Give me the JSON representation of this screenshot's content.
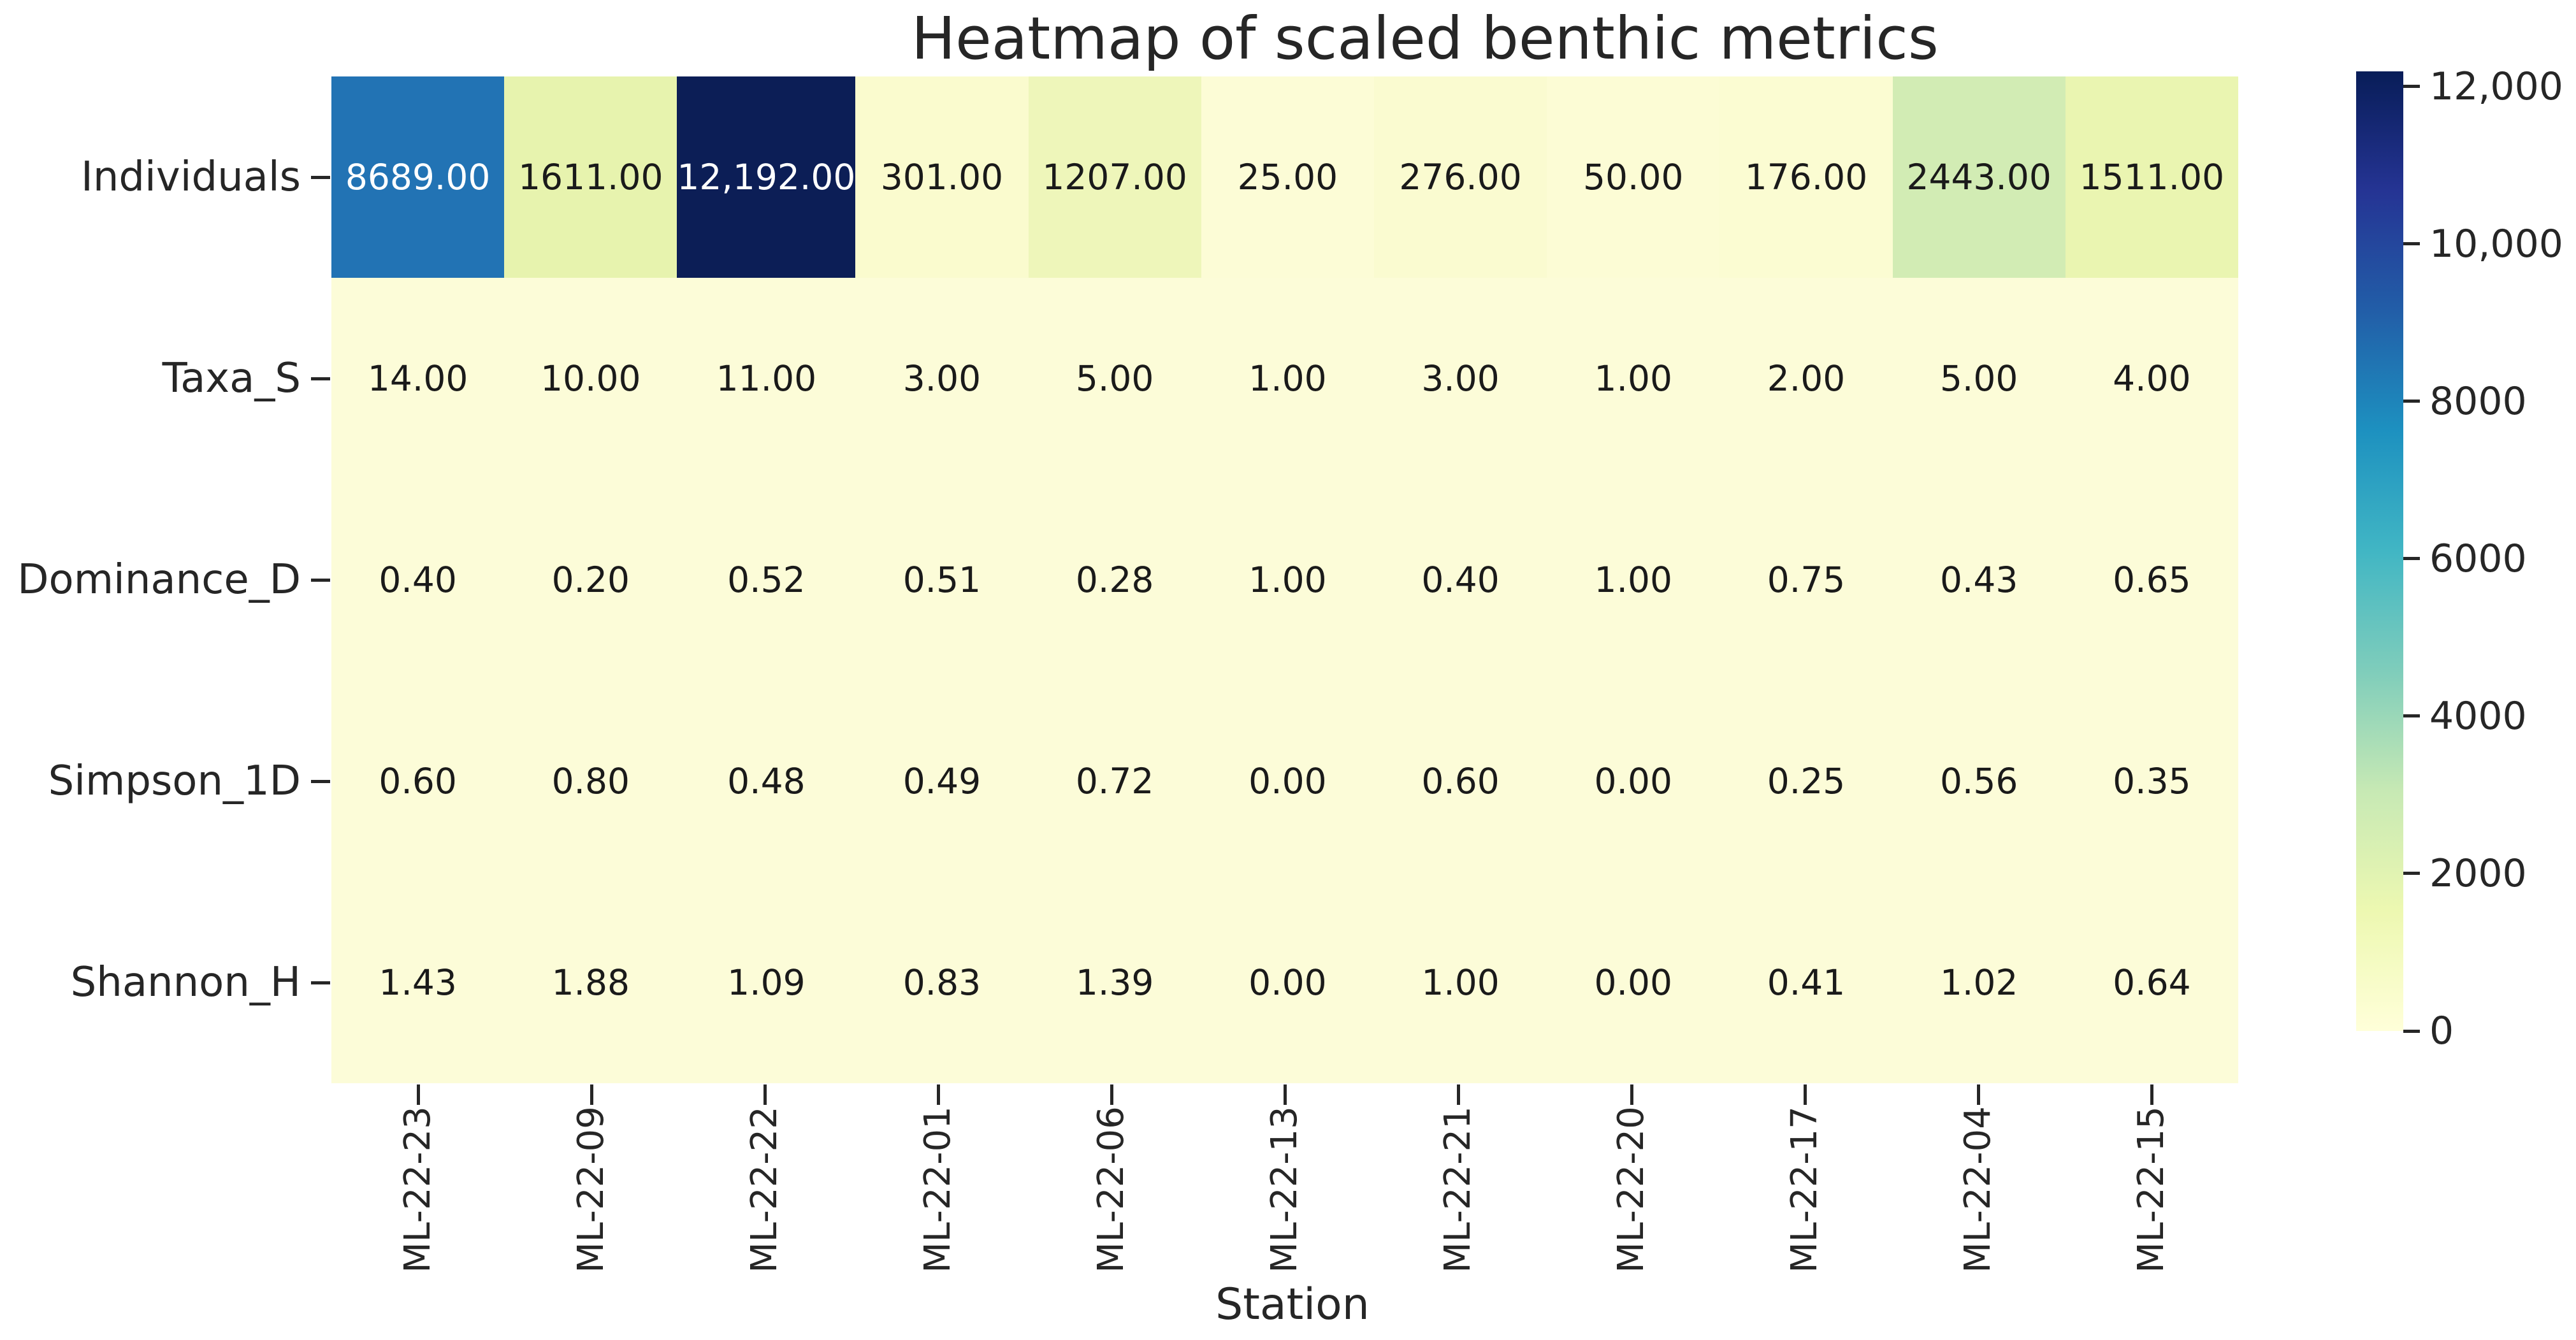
{
  "figure": {
    "background": "#ffffff",
    "text_color": "#262626"
  },
  "chart_data": {
    "type": "heatmap",
    "title": "Heatmap of scaled benthic metrics",
    "xlabel": "Station",
    "ylabel": "",
    "colormap": "YlGnBu",
    "vmin": 0,
    "vmax": 12192,
    "legend_position": "right-colorbar",
    "grid": false,
    "rows": [
      "Individuals",
      "Taxa_S",
      "Dominance_D",
      "Simpson_1D",
      "Shannon_H"
    ],
    "columns": [
      "ML-22-23",
      "ML-22-09",
      "ML-22-22",
      "ML-22-01",
      "ML-22-06",
      "ML-22-13",
      "ML-22-21",
      "ML-22-20",
      "ML-22-17",
      "ML-22-04",
      "ML-22-15"
    ],
    "values": [
      [
        8689,
        1611,
        12192,
        301,
        1207,
        25,
        276,
        50,
        176,
        2443,
        1511
      ],
      [
        14,
        10,
        11,
        3,
        5,
        1,
        3,
        1,
        2,
        5,
        4
      ],
      [
        0.4,
        0.2,
        0.52,
        0.51,
        0.28,
        1.0,
        0.4,
        1.0,
        0.75,
        0.43,
        0.65
      ],
      [
        0.6,
        0.8,
        0.48,
        0.49,
        0.72,
        0.0,
        0.6,
        0.0,
        0.25,
        0.56,
        0.35
      ],
      [
        1.43,
        1.88,
        1.09,
        0.83,
        1.39,
        0.0,
        1.0,
        0.0,
        0.41,
        1.02,
        0.64
      ]
    ],
    "cell_labels": [
      [
        "8689.00",
        "1611.00",
        "12,192.00",
        "301.00",
        "1207.00",
        "25.00",
        "276.00",
        "50.00",
        "176.00",
        "2443.00",
        "1511.00"
      ],
      [
        "14.00",
        "10.00",
        "11.00",
        "3.00",
        "5.00",
        "1.00",
        "3.00",
        "1.00",
        "2.00",
        "5.00",
        "4.00"
      ],
      [
        "0.40",
        "0.20",
        "0.52",
        "0.51",
        "0.28",
        "1.00",
        "0.40",
        "1.00",
        "0.75",
        "0.43",
        "0.65"
      ],
      [
        "0.60",
        "0.80",
        "0.48",
        "0.49",
        "0.72",
        "0.00",
        "0.60",
        "0.00",
        "0.25",
        "0.56",
        "0.35"
      ],
      [
        "1.43",
        "1.88",
        "1.09",
        "0.83",
        "1.39",
        "0.00",
        "1.00",
        "0.00",
        "0.41",
        "1.02",
        "0.64"
      ]
    ],
    "cell_colors": [
      [
        "#2273b4",
        "#e7f3ae",
        "#0c1e56",
        "#fafbce",
        "#eef6ba",
        "#fcfcd6",
        "#fafbd0",
        "#fcfcd5",
        "#fbfcd2",
        "#d2ecb4",
        "#eaf5b1"
      ],
      [
        "#fcfcd8",
        "#fcfcd8",
        "#fcfcd8",
        "#fcfcd8",
        "#fcfcd8",
        "#fcfcd8",
        "#fcfcd8",
        "#fcfcd8",
        "#fcfcd8",
        "#fcfcd8",
        "#fcfcd8"
      ],
      [
        "#fcfcd8",
        "#fcfcd8",
        "#fcfcd8",
        "#fcfcd8",
        "#fcfcd8",
        "#fcfcd8",
        "#fcfcd8",
        "#fcfcd8",
        "#fcfcd8",
        "#fcfcd8",
        "#fcfcd8"
      ],
      [
        "#fcfcd8",
        "#fcfcd8",
        "#fcfcd8",
        "#fcfcd8",
        "#fcfcd8",
        "#fcfcd8",
        "#fcfcd8",
        "#fcfcd8",
        "#fcfcd8",
        "#fcfcd8",
        "#fcfcd8"
      ],
      [
        "#fcfcd8",
        "#fcfcd8",
        "#fcfcd8",
        "#fcfcd8",
        "#fcfcd8",
        "#fcfcd8",
        "#fcfcd8",
        "#fcfcd8",
        "#fcfcd8",
        "#fcfcd8",
        "#fcfcd8"
      ]
    ],
    "cell_text_colors": [
      [
        "#ffffff",
        "#1a1a1a",
        "#ffffff",
        "#1a1a1a",
        "#1a1a1a",
        "#1a1a1a",
        "#1a1a1a",
        "#1a1a1a",
        "#1a1a1a",
        "#1a1a1a",
        "#1a1a1a"
      ],
      [
        "#1a1a1a",
        "#1a1a1a",
        "#1a1a1a",
        "#1a1a1a",
        "#1a1a1a",
        "#1a1a1a",
        "#1a1a1a",
        "#1a1a1a",
        "#1a1a1a",
        "#1a1a1a",
        "#1a1a1a"
      ],
      [
        "#1a1a1a",
        "#1a1a1a",
        "#1a1a1a",
        "#1a1a1a",
        "#1a1a1a",
        "#1a1a1a",
        "#1a1a1a",
        "#1a1a1a",
        "#1a1a1a",
        "#1a1a1a",
        "#1a1a1a"
      ],
      [
        "#1a1a1a",
        "#1a1a1a",
        "#1a1a1a",
        "#1a1a1a",
        "#1a1a1a",
        "#1a1a1a",
        "#1a1a1a",
        "#1a1a1a",
        "#1a1a1a",
        "#1a1a1a",
        "#1a1a1a"
      ],
      [
        "#1a1a1a",
        "#1a1a1a",
        "#1a1a1a",
        "#1a1a1a",
        "#1a1a1a",
        "#1a1a1a",
        "#1a1a1a",
        "#1a1a1a",
        "#1a1a1a",
        "#1a1a1a",
        "#1a1a1a"
      ]
    ],
    "colorbar": {
      "ticks": [
        {
          "label": "12,000",
          "value": 12000
        },
        {
          "label": "10,000",
          "value": 10000
        },
        {
          "label": "8000",
          "value": 8000
        },
        {
          "label": "6000",
          "value": 6000
        },
        {
          "label": "4000",
          "value": 4000
        },
        {
          "label": "2000",
          "value": 2000
        },
        {
          "label": "0",
          "value": 0
        }
      ],
      "gradient_stops": [
        "#ffffd9",
        "#edf8b1",
        "#c7e9b4",
        "#7fcdbb",
        "#41b6c4",
        "#1d91c0",
        "#225ea8",
        "#253494",
        "#081d58"
      ]
    }
  }
}
